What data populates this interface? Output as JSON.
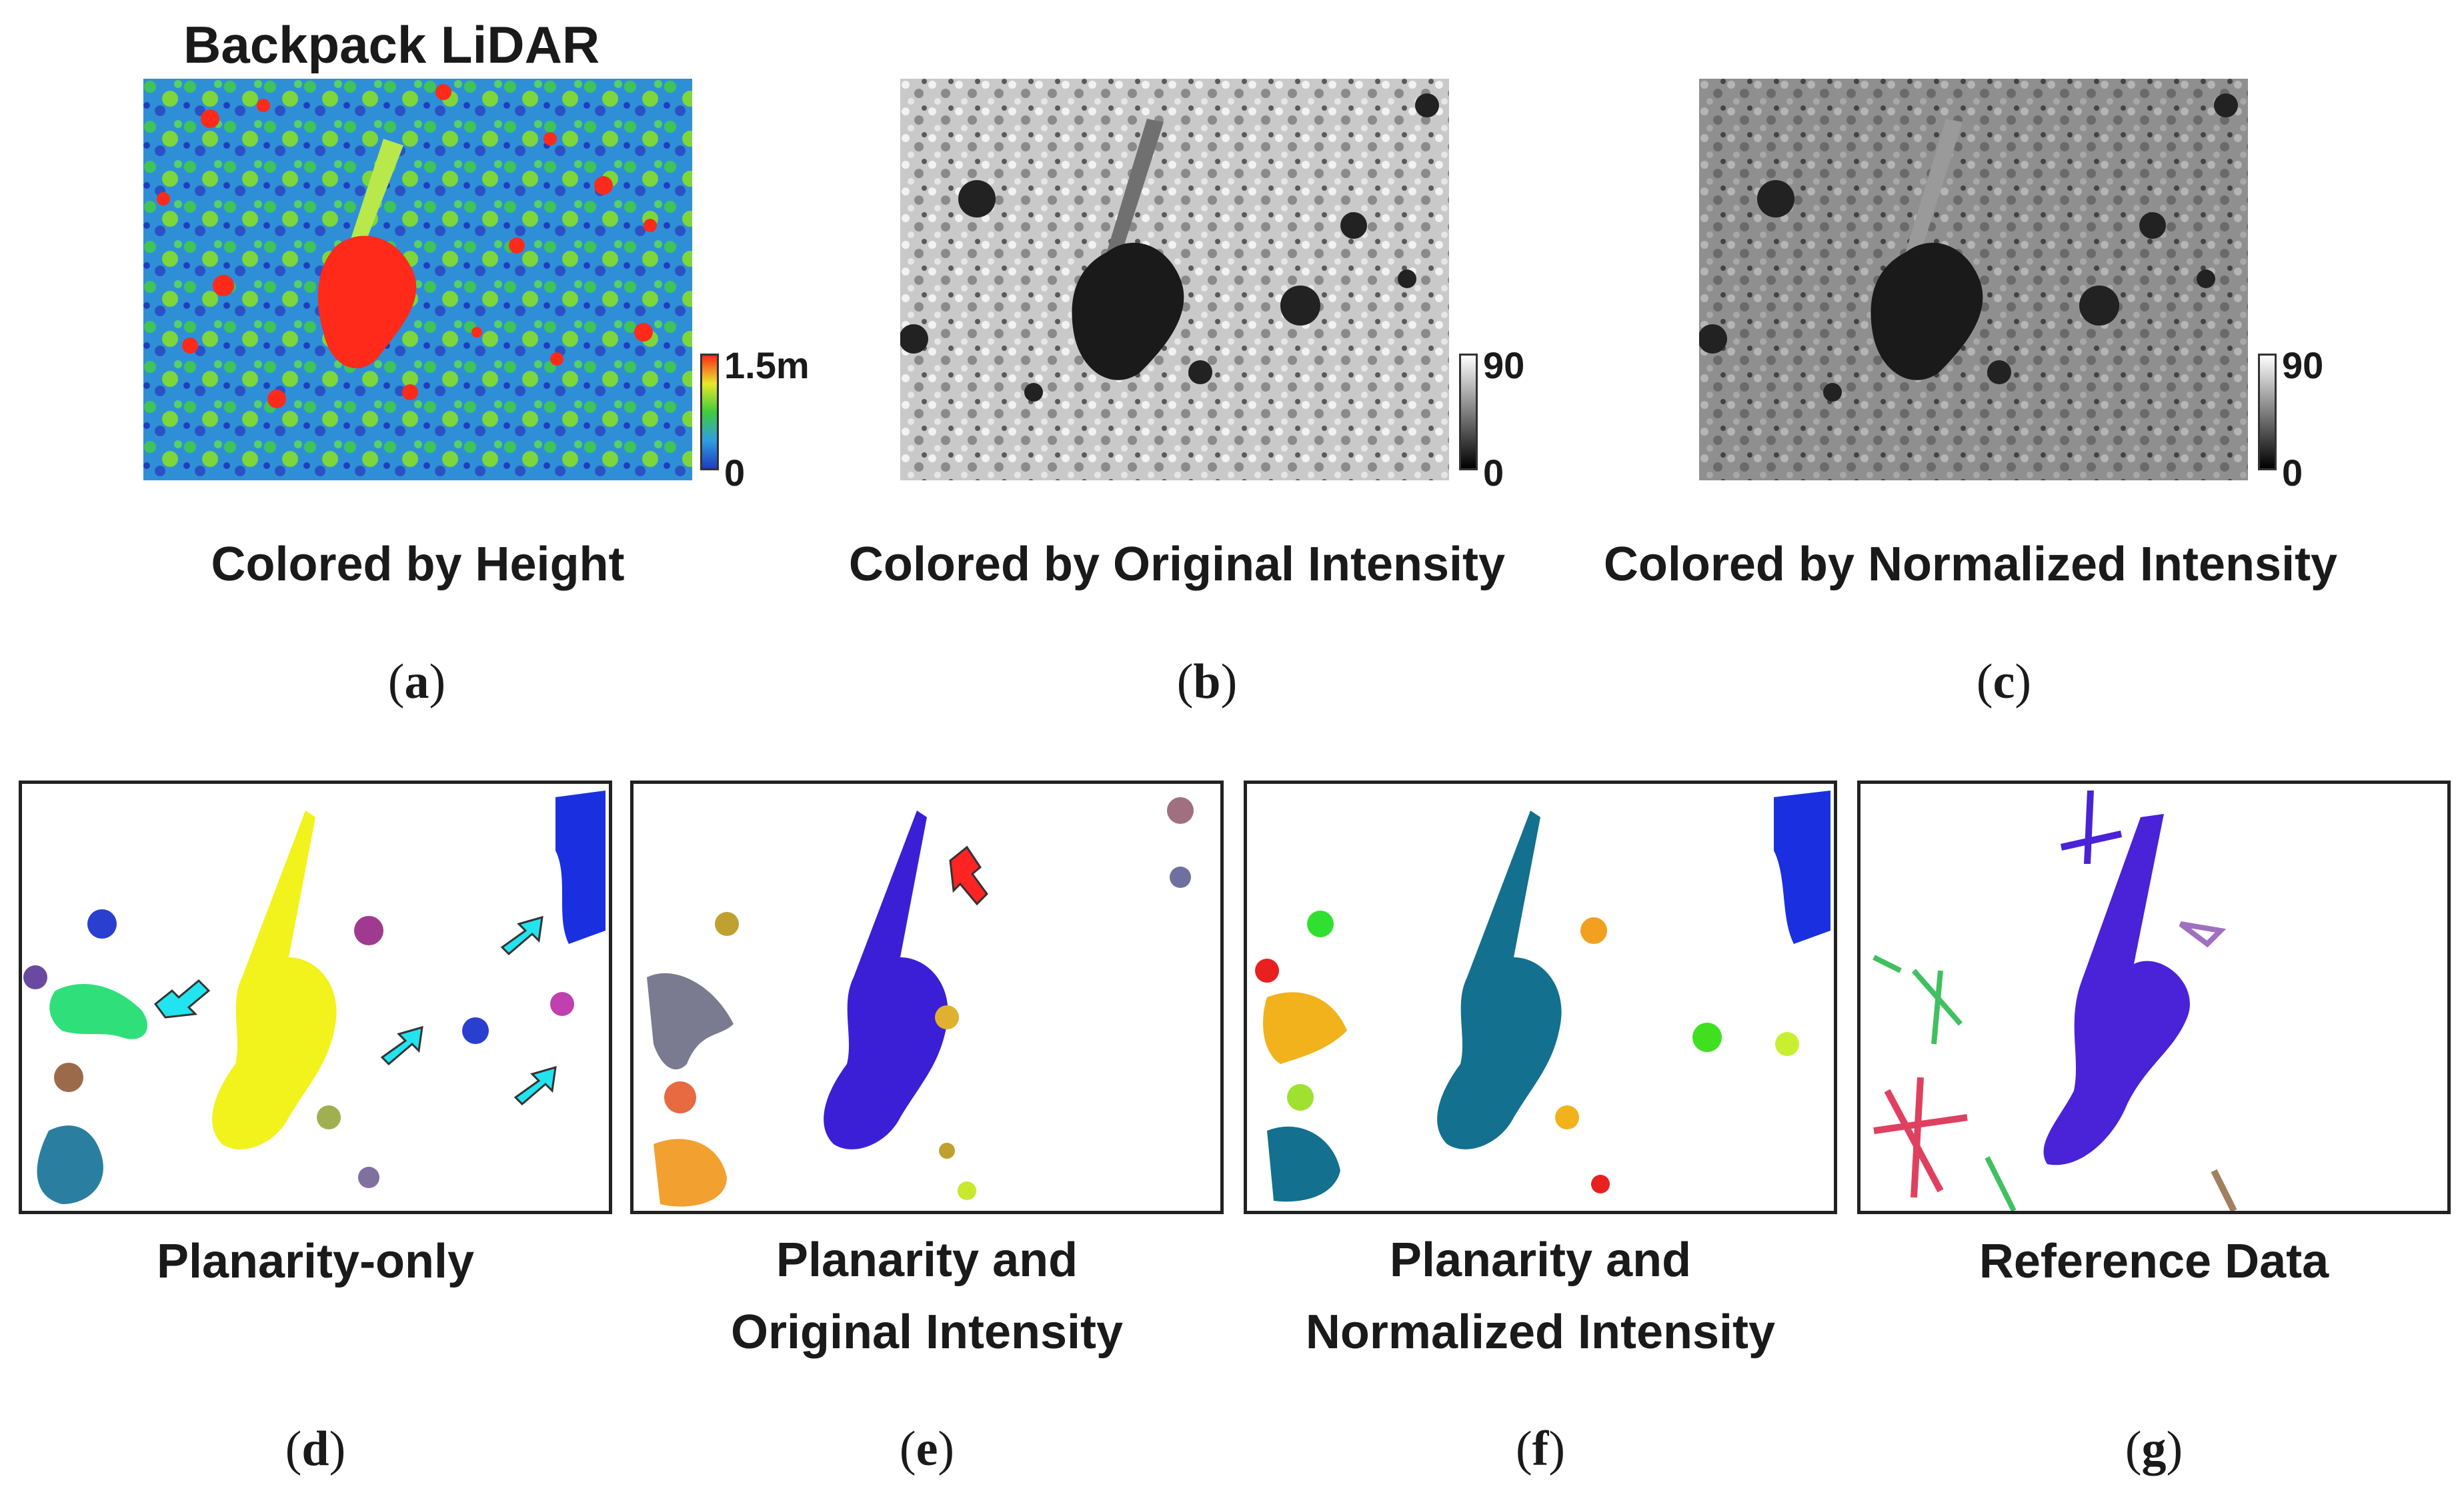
{
  "figure": {
    "top_title": "Backpack LiDAR",
    "panels": [
      {
        "id": "a",
        "caption": "Colored by Height",
        "subfig_label": "a",
        "colorbar": {
          "max_label": "1.5m",
          "min_label": "0",
          "colors": [
            "#1f3dbf",
            "#2fa0e0",
            "#3fcc3a",
            "#e8e82a",
            "#ff2a1a"
          ]
        }
      },
      {
        "id": "b",
        "caption": "Colored by Original Intensity",
        "subfig_label": "b",
        "colorbar": {
          "max_label": "90",
          "min_label": "0",
          "colors": [
            "#000000",
            "#ffffff"
          ]
        }
      },
      {
        "id": "c",
        "caption": "Colored by Normalized Intensity",
        "subfig_label": "c",
        "colorbar": {
          "max_label": "90",
          "min_label": "0",
          "colors": [
            "#000000",
            "#ffffff"
          ]
        }
      },
      {
        "id": "d",
        "caption": "Planarity-only",
        "subfig_label": "d",
        "main_color": "#f2f21c"
      },
      {
        "id": "e",
        "caption_line1": "Planarity and",
        "caption_line2": "Original Intensity",
        "subfig_label": "e",
        "main_color": "#3a1fd6"
      },
      {
        "id": "f",
        "caption_line1": "Planarity and",
        "caption_line2": "Normalized Intensity",
        "subfig_label": "f",
        "main_color": "#13708e"
      },
      {
        "id": "g",
        "caption": "Reference Data",
        "subfig_label": "g",
        "main_color": "#4a22d8"
      }
    ],
    "arrow_colors": {
      "cyan": "#22e3f0",
      "red": "#ff2424"
    }
  }
}
